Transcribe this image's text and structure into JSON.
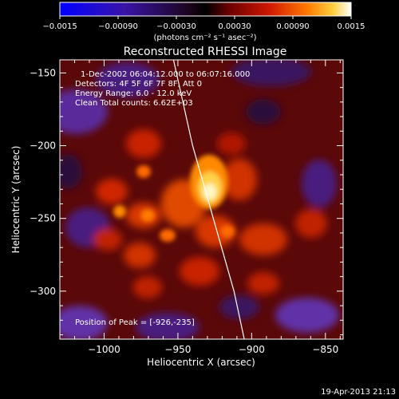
{
  "colorbar": {
    "ticks": [
      {
        "value": -0.0015,
        "label": "−0.0015"
      },
      {
        "value": -0.0009,
        "label": "−0.00090"
      },
      {
        "value": -0.0003,
        "label": "−0.00030"
      },
      {
        "value": 0.0003,
        "label": "0.00030"
      },
      {
        "value": 0.0009,
        "label": "0.00090"
      },
      {
        "value": 0.0015,
        "label": "0.0015"
      }
    ],
    "range": [
      -0.0015,
      0.0015
    ],
    "units": "(photons cm⁻² s⁻¹ asec⁻²)"
  },
  "chart_data": {
    "type": "heatmap",
    "title": "Reconstructed RHESSI Image",
    "xlabel": "Heliocentric X (arcsec)",
    "ylabel": "Heliocentric Y (arcsec)",
    "xlim": [
      -1030,
      -838
    ],
    "ylim": [
      -333,
      -141
    ],
    "xticks": [
      {
        "value": -1000,
        "label": "−1000"
      },
      {
        "value": -950,
        "label": "−950"
      },
      {
        "value": -900,
        "label": "−900"
      },
      {
        "value": -850,
        "label": "−850"
      }
    ],
    "yticks": [
      {
        "value": -150,
        "label": "−150"
      },
      {
        "value": -200,
        "label": "−200"
      },
      {
        "value": -250,
        "label": "−250"
      },
      {
        "value": -300,
        "label": "−300"
      }
    ],
    "annotations": [
      "1-Dec-2002 06:04:12.000 to 06:07:16.000",
      "Detectors: 4F 5F 6F 7F 8F, Att 0",
      "Energy Range: 6.0 - 12.0 keV",
      "Clean    Total counts: 6.62E+03"
    ],
    "peak_label": "Position of Peak = [-926,-235]",
    "peak": {
      "x": -926,
      "y": -235
    },
    "limb_points": [
      [
        -953,
        -141
      ],
      [
        -940,
        -200
      ],
      [
        -926,
        -250
      ],
      [
        -912,
        -300
      ],
      [
        -905,
        -333
      ]
    ]
  },
  "footer": {
    "timestamp": "19-Apr-2013 21:13"
  }
}
